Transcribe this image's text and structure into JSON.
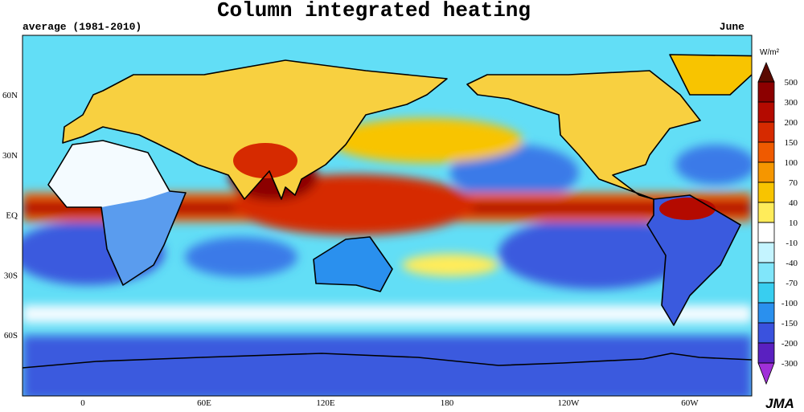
{
  "header": {
    "title": "Column integrated heating",
    "period": "average (1981-2010)",
    "month": "June"
  },
  "map": {
    "lat_labels": [
      "60N",
      "30N",
      "EQ",
      "30S",
      "60S"
    ],
    "lon_labels": [
      "0",
      "60E",
      "120E",
      "180",
      "120W",
      "60W"
    ]
  },
  "colorbar": {
    "unit": "W/m²",
    "ticks": [
      500,
      300,
      200,
      150,
      100,
      70,
      40,
      10,
      -10,
      -40,
      -70,
      -100,
      -150,
      -200,
      -300
    ],
    "colors": [
      "#5a0a00",
      "#8c0000",
      "#b40a00",
      "#d62a00",
      "#ef5a00",
      "#f59600",
      "#f8c400",
      "#ffec5a",
      "#ffffff",
      "#c4f4ff",
      "#80e6fa",
      "#38cef0",
      "#2a90ee",
      "#3a52de",
      "#5a20c0",
      "#a030d8"
    ]
  },
  "footer": {
    "credit": "JMA"
  }
}
